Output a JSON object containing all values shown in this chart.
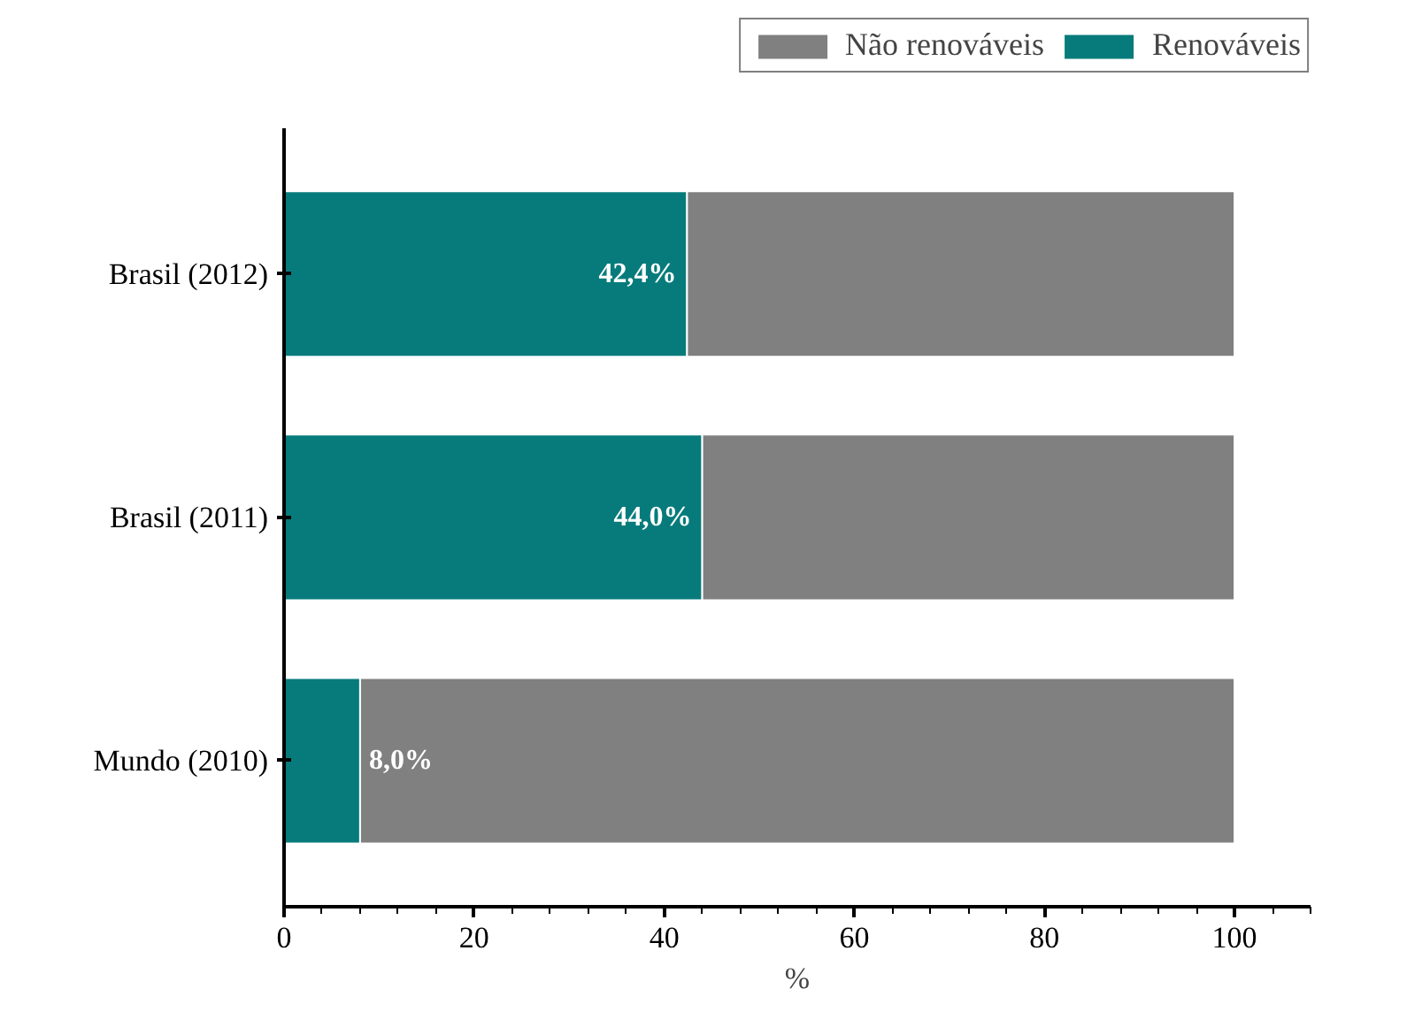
{
  "chart_data": {
    "type": "bar",
    "orientation": "horizontal",
    "stacked": true,
    "xlabel": "%",
    "categories": [
      "Brasil (2012)",
      "Brasil (2011)",
      "Mundo (2010)"
    ],
    "series": [
      {
        "name": "Renováveis",
        "color": "#077b7b",
        "values": [
          42.4,
          44.0,
          8.0
        ],
        "value_labels": [
          "42,4%",
          "44,0%",
          "8,0%"
        ]
      },
      {
        "name": "Não renováveis",
        "color": "#808080",
        "values": [
          57.6,
          56.0,
          92.0
        ]
      }
    ],
    "xlim": [
      0,
      108
    ],
    "xticks": [
      0,
      20,
      40,
      60,
      80,
      100
    ],
    "grid": false,
    "legend": "top right"
  }
}
